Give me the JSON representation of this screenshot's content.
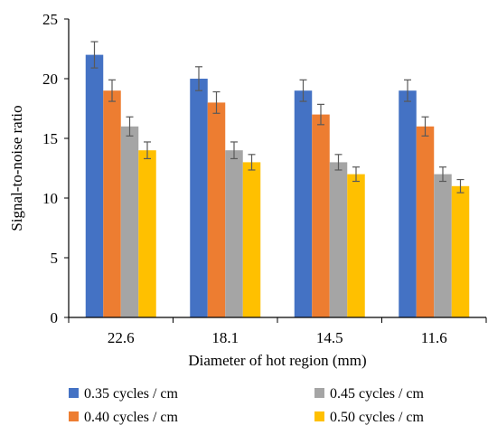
{
  "chart_data": {
    "type": "bar",
    "title": "",
    "xlabel": "Diameter of hot region (mm)",
    "ylabel": "Signal-to-noise ratio",
    "categories": [
      "22.6",
      "18.1",
      "14.5",
      "11.6"
    ],
    "ylim": [
      0,
      25
    ],
    "yticks": [
      0,
      5,
      10,
      15,
      20,
      25
    ],
    "grid": false,
    "legend_position": "bottom",
    "error_bars": true,
    "series": [
      {
        "name": "0.35 cycles / cm",
        "color": "#4472C4",
        "values": [
          22,
          20,
          19,
          19
        ],
        "errors": [
          1.1,
          1.0,
          0.9,
          0.9
        ]
      },
      {
        "name": "0.40 cycles / cm",
        "color": "#ED7D31",
        "values": [
          19,
          18,
          17,
          16
        ],
        "errors": [
          0.9,
          0.9,
          0.85,
          0.8
        ]
      },
      {
        "name": "0.45 cycles / cm",
        "color": "#A5A5A5",
        "values": [
          16,
          14,
          13,
          12
        ],
        "errors": [
          0.8,
          0.7,
          0.65,
          0.6
        ]
      },
      {
        "name": "0.50 cycles / cm",
        "color": "#FFC000",
        "values": [
          14,
          13,
          12,
          11
        ],
        "errors": [
          0.7,
          0.65,
          0.6,
          0.55
        ]
      }
    ]
  }
}
